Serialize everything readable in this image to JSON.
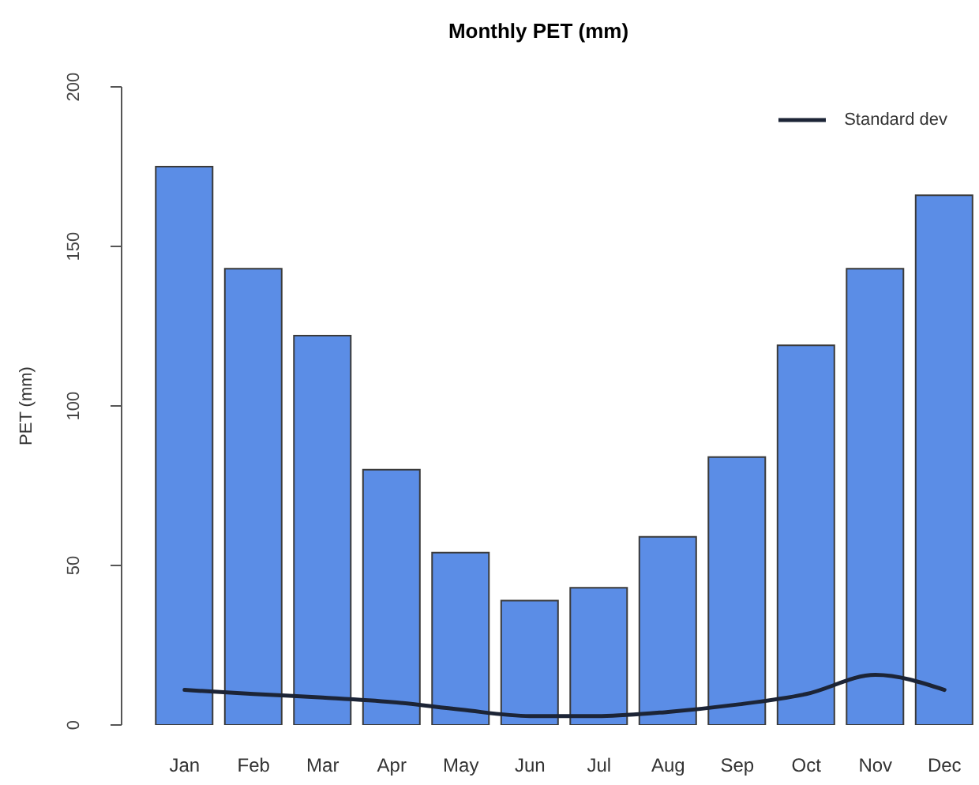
{
  "chart_data": {
    "type": "bar",
    "title": "Monthly PET (mm)",
    "ylabel": "PET (mm)",
    "categories": [
      "Jan",
      "Feb",
      "Mar",
      "Apr",
      "May",
      "Jun",
      "Jul",
      "Aug",
      "Sep",
      "Oct",
      "Nov",
      "Dec"
    ],
    "series": [
      {
        "color": "#5b8de6",
        "values": [
          175,
          143,
          122,
          80,
          54,
          39,
          43,
          59,
          84,
          119,
          143,
          166
        ]
      },
      {
        "type": "line",
        "name": "Standard dev",
        "color": "#1c2436",
        "values": [
          11,
          9.7,
          8.6,
          7.2,
          4.8,
          2.8,
          2.8,
          4.1,
          6.4,
          9.7,
          15.7,
          11
        ]
      }
    ],
    "ylim": [
      0,
      200
    ],
    "yticks": [
      0,
      50,
      100,
      150,
      200
    ],
    "legend": "top right",
    "marker": "none",
    "line_style": "solid"
  }
}
